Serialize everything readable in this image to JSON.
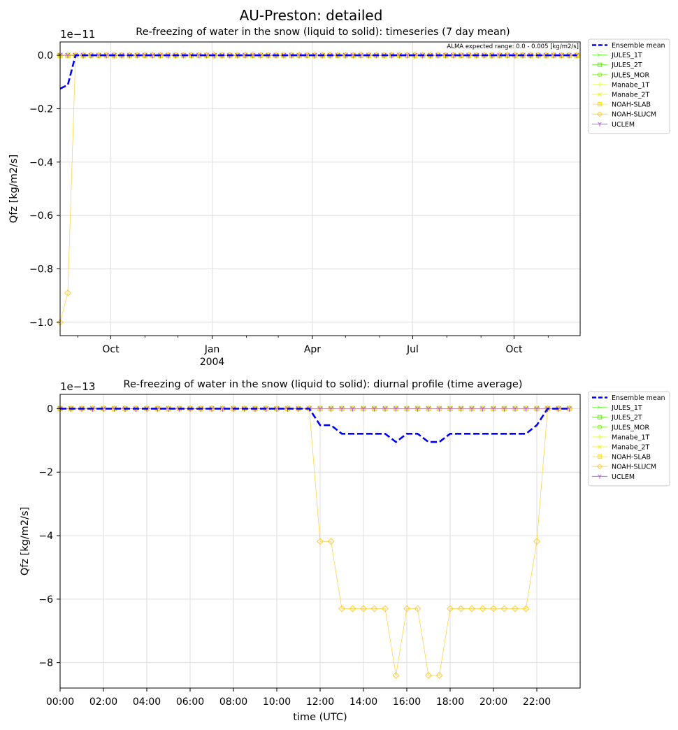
{
  "figure": {
    "suptitle": "AU-Preston: detailed"
  },
  "colors": {
    "Ensemble mean": "#0000ff",
    "JULES_1T": "#66ff33",
    "JULES_2T": "#66ee22",
    "JULES_MOR": "#88ee33",
    "Manabe_1T": "#ddff33",
    "Manabe_2T": "#eeee22",
    "NOAH-SLAB": "#ffdd22",
    "NOAH-SLUCM": "#ffcc33",
    "UCLEM": "#aa55ee"
  },
  "chart_data": [
    {
      "type": "line",
      "title": "Re-freezing of water in the snow (liquid to solid): timeseries (7 day mean)",
      "xlabel": "",
      "ylabel": "Qfz [kg/m2/s]",
      "y_offset_label": "1e−11",
      "annotation": "ALMA expected range: 0.0 - 0.005 [kg/m2/s]",
      "ylim": [
        -1.05,
        0.05
      ],
      "yticks": [
        0.0,
        -0.2,
        -0.4,
        -0.6,
        -0.8,
        -1.0
      ],
      "ytick_labels": [
        "0.0",
        "−0.2",
        "−0.4",
        "−0.6",
        "−0.8",
        "−1.0"
      ],
      "xlim": [
        "2003-08-16",
        "2004-11-30"
      ],
      "xticks": [
        "2003-10-01",
        "2004-01-01",
        "2004-04-01",
        "2004-07-01",
        "2004-10-01"
      ],
      "xtick_labels": [
        "Oct",
        "Jan",
        "Apr",
        "Jul",
        "Oct"
      ],
      "xtick_sublabels": [
        "",
        "2004",
        "",
        "",
        ""
      ],
      "x_start": "2003-08-16",
      "x_step_days": 7,
      "n_points": 68,
      "legend": "outside-right",
      "grid": true,
      "series": [
        {
          "name": "Ensemble mean",
          "values_head": [
            -0.125,
            -0.111,
            0.0
          ],
          "fill": 0.0
        },
        {
          "name": "JULES_1T",
          "values_head": [],
          "fill": 0.0
        },
        {
          "name": "JULES_2T",
          "values_head": [],
          "fill": 0.0
        },
        {
          "name": "JULES_MOR",
          "values_head": [],
          "fill": 0.0
        },
        {
          "name": "Manabe_1T",
          "values_head": [],
          "fill": 0.0
        },
        {
          "name": "Manabe_2T",
          "values_head": [],
          "fill": 0.0
        },
        {
          "name": "NOAH-SLAB",
          "values_head": [],
          "fill": 0.0
        },
        {
          "name": "NOAH-SLUCM",
          "values_head": [
            -1.0,
            -0.89,
            0.0
          ],
          "fill": 0.0
        },
        {
          "name": "UCLEM",
          "values_head": [],
          "fill": 0.0
        }
      ]
    },
    {
      "type": "line",
      "title": "Re-freezing of water in the snow (liquid to solid): diurnal profile (time average)",
      "xlabel": "time (UTC)",
      "ylabel": "Qfz [kg/m2/s]",
      "y_offset_label": "1e−13",
      "ylim": [
        -8.8,
        0.45
      ],
      "yticks": [
        0,
        -2,
        -4,
        -6,
        -8
      ],
      "ytick_labels": [
        "0",
        "−2",
        "−4",
        "−6",
        "−8"
      ],
      "xlim": [
        0,
        24
      ],
      "xticks": [
        0,
        2,
        4,
        6,
        8,
        10,
        12,
        14,
        16,
        18,
        20,
        22
      ],
      "xtick_labels": [
        "00:00",
        "02:00",
        "04:00",
        "06:00",
        "08:00",
        "10:00",
        "12:00",
        "14:00",
        "16:00",
        "18:00",
        "20:00",
        "22:00"
      ],
      "x": [
        0,
        0.5,
        1,
        1.5,
        2,
        2.5,
        3,
        3.5,
        4,
        4.5,
        5,
        5.5,
        6,
        6.5,
        7,
        7.5,
        8,
        8.5,
        9,
        9.5,
        10,
        10.5,
        11,
        11.5,
        12,
        12.5,
        13,
        13.5,
        14,
        14.5,
        15,
        15.5,
        16,
        16.5,
        17,
        17.5,
        18,
        18.5,
        19,
        19.5,
        20,
        20.5,
        21,
        21.5,
        22,
        22.5,
        23,
        23.5
      ],
      "legend": "outside-right",
      "grid": true,
      "series": [
        {
          "name": "Ensemble mean",
          "values": [
            0,
            0,
            0,
            0,
            0,
            0,
            0,
            0,
            0,
            0,
            0,
            0,
            0,
            0,
            0,
            0,
            0,
            0,
            0,
            0,
            0,
            0,
            0,
            0,
            -0.52,
            -0.52,
            -0.79,
            -0.79,
            -0.79,
            -0.79,
            -0.79,
            -1.05,
            -0.79,
            -0.79,
            -1.05,
            -1.05,
            -0.79,
            -0.79,
            -0.79,
            -0.79,
            -0.79,
            -0.79,
            -0.79,
            -0.79,
            -0.52,
            0,
            0,
            0
          ]
        },
        {
          "name": "JULES_1T",
          "values": [
            0,
            0,
            0,
            0,
            0,
            0,
            0,
            0,
            0,
            0,
            0,
            0,
            0,
            0,
            0,
            0,
            0,
            0,
            0,
            0,
            0,
            0,
            0,
            0,
            0,
            0,
            0,
            0,
            0,
            0,
            0,
            0,
            0,
            0,
            0,
            0,
            0,
            0,
            0,
            0,
            0,
            0,
            0,
            0,
            0,
            0,
            0,
            0
          ]
        },
        {
          "name": "JULES_2T",
          "values": [
            0,
            0,
            0,
            0,
            0,
            0,
            0,
            0,
            0,
            0,
            0,
            0,
            0,
            0,
            0,
            0,
            0,
            0,
            0,
            0,
            0,
            0,
            0,
            0,
            0,
            0,
            0,
            0,
            0,
            0,
            0,
            0,
            0,
            0,
            0,
            0,
            0,
            0,
            0,
            0,
            0,
            0,
            0,
            0,
            0,
            0,
            0,
            0
          ]
        },
        {
          "name": "JULES_MOR",
          "values": [
            0,
            0,
            0,
            0,
            0,
            0,
            0,
            0,
            0,
            0,
            0,
            0,
            0,
            0,
            0,
            0,
            0,
            0,
            0,
            0,
            0,
            0,
            0,
            0,
            0,
            0,
            0,
            0,
            0,
            0,
            0,
            0,
            0,
            0,
            0,
            0,
            0,
            0,
            0,
            0,
            0,
            0,
            0,
            0,
            0,
            0,
            0,
            0
          ]
        },
        {
          "name": "Manabe_1T",
          "values": [
            0,
            0,
            0,
            0,
            0,
            0,
            0,
            0,
            0,
            0,
            0,
            0,
            0,
            0,
            0,
            0,
            0,
            0,
            0,
            0,
            0,
            0,
            0,
            0,
            0,
            0,
            0,
            0,
            0,
            0,
            0,
            0,
            0,
            0,
            0,
            0,
            0,
            0,
            0,
            0,
            0,
            0,
            0,
            0,
            0,
            0,
            0,
            0
          ]
        },
        {
          "name": "Manabe_2T",
          "values": [
            0,
            0,
            0,
            0,
            0,
            0,
            0,
            0,
            0,
            0,
            0,
            0,
            0,
            0,
            0,
            0,
            0,
            0,
            0,
            0,
            0,
            0,
            0,
            0,
            0,
            0,
            0,
            0,
            0,
            0,
            0,
            0,
            0,
            0,
            0,
            0,
            0,
            0,
            0,
            0,
            0,
            0,
            0,
            0,
            0,
            0,
            0,
            0
          ]
        },
        {
          "name": "NOAH-SLAB",
          "values": [
            0,
            0,
            0,
            0,
            0,
            0,
            0,
            0,
            0,
            0,
            0,
            0,
            0,
            0,
            0,
            0,
            0,
            0,
            0,
            0,
            0,
            0,
            0,
            0,
            0,
            0,
            0,
            0,
            0,
            0,
            0,
            0,
            0,
            0,
            0,
            0,
            0,
            0,
            0,
            0,
            0,
            0,
            0,
            0,
            0,
            0,
            0,
            0
          ]
        },
        {
          "name": "NOAH-SLUCM",
          "values": [
            0,
            0,
            0,
            0,
            0,
            0,
            0,
            0,
            0,
            0,
            0,
            0,
            0,
            0,
            0,
            0,
            0,
            0,
            0,
            0,
            0,
            0,
            0,
            0,
            -4.18,
            -4.18,
            -6.3,
            -6.3,
            -6.3,
            -6.3,
            -6.3,
            -8.4,
            -6.3,
            -6.3,
            -8.4,
            -8.4,
            -6.3,
            -6.3,
            -6.3,
            -6.3,
            -6.3,
            -6.3,
            -6.3,
            -6.3,
            -4.18,
            0,
            0,
            0
          ]
        },
        {
          "name": "UCLEM",
          "values": [
            0,
            0,
            0,
            0,
            0,
            0,
            0,
            0,
            0,
            0,
            0,
            0,
            0,
            0,
            0,
            0,
            0,
            0,
            0,
            0,
            0,
            0,
            0,
            0,
            0,
            0,
            0,
            0,
            0,
            0,
            0,
            0,
            0,
            0,
            0,
            0,
            0,
            0,
            0,
            0,
            0,
            0,
            0,
            0,
            0,
            0,
            0,
            0
          ]
        }
      ]
    }
  ]
}
